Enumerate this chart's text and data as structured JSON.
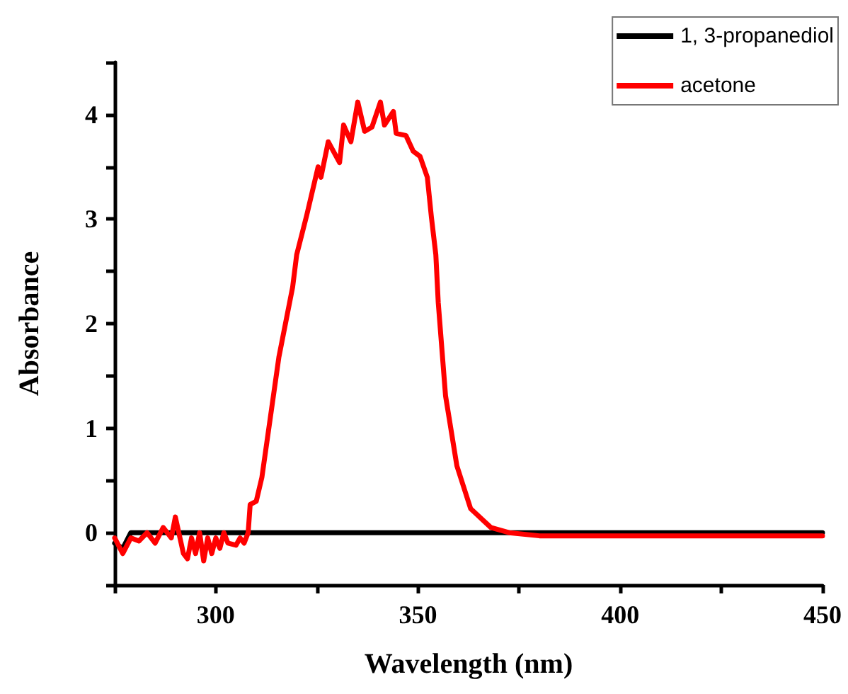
{
  "chart_data": {
    "type": "line",
    "xlabel": "Wavelength (nm)",
    "ylabel": "Absorbance",
    "xlim": [
      275,
      450
    ],
    "xticks": [
      {
        "value": 275,
        "label": null
      },
      300,
      {
        "value": 325,
        "label": null
      },
      350,
      {
        "value": 375,
        "label": null
      },
      400,
      {
        "value": 425,
        "label": null
      },
      450
    ],
    "ylim": [
      -0.5,
      4.5
    ],
    "yticks": [
      {
        "value": -0.5,
        "label": null
      },
      0,
      {
        "value": 0.5,
        "label": null
      },
      1,
      {
        "value": 1.5,
        "label": null
      },
      2,
      {
        "value": 2.5,
        "label": null
      },
      3,
      {
        "value": 3.5,
        "label": null
      },
      4,
      {
        "value": 4.5,
        "label": null
      }
    ],
    "grid": false,
    "legend": "top right",
    "marker": "none",
    "line_style": "solid",
    "series": [
      {
        "name": "1, 3-propanediol",
        "color": "#000000",
        "x": [
          275,
          277,
          279,
          450
        ],
        "values": [
          -0.1,
          -0.15,
          0,
          0
        ]
      },
      {
        "name": "acetone",
        "color": "#ff0000",
        "x": [
          275,
          277,
          279,
          281,
          283,
          285,
          287,
          289,
          290,
          292,
          293,
          294,
          295,
          296,
          297,
          298,
          299,
          300,
          301,
          302,
          303,
          305,
          306,
          307,
          308,
          308.5,
          310,
          311.4,
          315.6,
          319,
          320,
          322.5,
          325.3,
          326,
          327.8,
          330.6,
          331.6,
          333.4,
          335.1,
          336.8,
          338.6,
          340.7,
          341.7,
          343.9,
          344.6,
          347,
          348.8,
          350.5,
          352.3,
          353.3,
          354.4,
          355,
          356.8,
          359.6,
          363,
          368,
          372.5,
          380,
          450
        ],
        "values": [
          -0.05,
          -0.2,
          -0.05,
          -0.08,
          0,
          -0.1,
          0.05,
          -0.05,
          0.15,
          -0.2,
          -0.25,
          -0.05,
          -0.2,
          0,
          -0.27,
          -0.05,
          -0.2,
          -0.05,
          -0.15,
          0,
          -0.1,
          -0.12,
          -0.05,
          -0.1,
          0,
          0.27,
          0.3,
          0.53,
          1.68,
          2.35,
          2.66,
          3.04,
          3.5,
          3.4,
          3.74,
          3.54,
          3.9,
          3.74,
          4.12,
          3.84,
          3.88,
          4.12,
          3.9,
          4.03,
          3.82,
          3.8,
          3.65,
          3.6,
          3.4,
          3.02,
          2.66,
          2.2,
          1.31,
          0.64,
          0.23,
          0.05,
          0,
          -0.03,
          -0.03
        ]
      }
    ]
  }
}
